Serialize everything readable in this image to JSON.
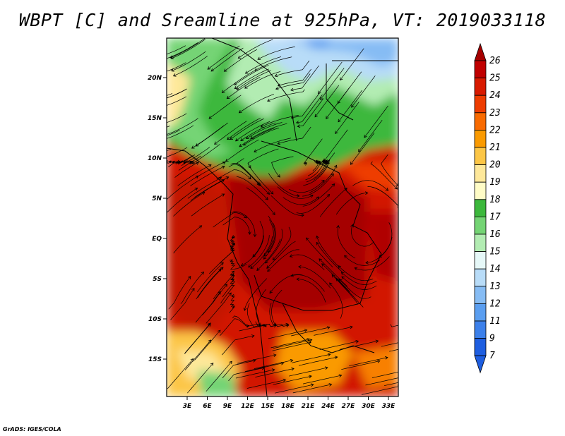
{
  "title": "WBPT [C] and Sreamline at 925hPa, VT: 2019033118",
  "credit": "GrADS: IGES/COLA",
  "lon_ticks": [
    "3E",
    "6E",
    "9E",
    "12E",
    "15E",
    "18E",
    "21E",
    "24E",
    "27E",
    "30E",
    "33E"
  ],
  "lat_ticks": [
    "20N",
    "15N",
    "10N",
    "5N",
    "EQ",
    "5S",
    "10S",
    "15S"
  ],
  "colorbar": {
    "levels": [
      "26",
      "25",
      "24",
      "23",
      "22",
      "21",
      "20",
      "19",
      "18",
      "17",
      "16",
      "15",
      "14",
      "13",
      "12",
      "11",
      "9",
      "7"
    ],
    "colors": [
      "#a50000",
      "#c00000",
      "#d81a00",
      "#ee3c00",
      "#f86a00",
      "#fa9a00",
      "#fcc646",
      "#fee89a",
      "#fffcc6",
      "#3cb83c",
      "#74d474",
      "#b2ecb2",
      "#e6f8f8",
      "#b8dcf8",
      "#86bcf4",
      "#5a9ef0",
      "#3c80ea",
      "#1e5ee0"
    ],
    "under_color": "#1e5ee0",
    "over_color": "#a50000"
  }
}
